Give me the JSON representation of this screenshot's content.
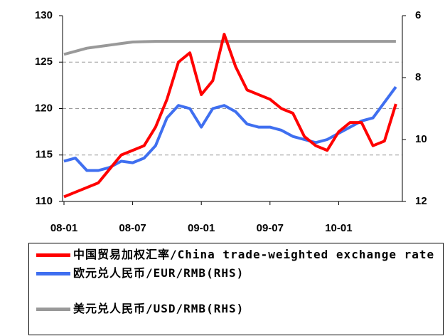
{
  "chart_data": {
    "type": "line",
    "categories": [
      "08-01",
      null,
      null,
      null,
      null,
      null,
      "08-07",
      null,
      null,
      null,
      null,
      null,
      "09-01",
      null,
      null,
      null,
      null,
      null,
      "09-07",
      null,
      null,
      null,
      null,
      null,
      "10-01",
      null,
      null,
      null,
      null,
      null
    ],
    "ylim": [
      110,
      130
    ],
    "yticks": [
      110,
      115,
      120,
      125,
      130
    ],
    "y2lim": [
      12,
      6
    ],
    "y2ticks": [
      6,
      8,
      10,
      12
    ],
    "grid": true,
    "series": [
      {
        "name": "中国贸易加权汇率/China trade-weighted exchange rate",
        "color": "#ff0000",
        "values": [
          110.5,
          111,
          111.5,
          112,
          113.5,
          115,
          115.5,
          116,
          118,
          121,
          125,
          126,
          121.5,
          123,
          128,
          124.5,
          122,
          121.5,
          121,
          120,
          119.5,
          117,
          116,
          115.5,
          117.5,
          118.5,
          118.5,
          116,
          116.5,
          120.5
        ]
      },
      {
        "name": "欧元兑人民币/EUR/RMB(RHS)",
        "color": "#3f6ff0",
        "axis": "y2",
        "values": [
          10.7,
          10.6,
          11.0,
          11.0,
          10.9,
          10.7,
          10.75,
          10.6,
          10.2,
          9.3,
          8.9,
          9.0,
          9.6,
          9.0,
          8.9,
          9.1,
          9.5,
          9.6,
          9.6,
          9.7,
          9.9,
          10.0,
          10.1,
          10.0,
          9.8,
          9.6,
          9.4,
          9.3,
          8.8,
          8.3
        ]
      },
      {
        "name": "美元兑人民币/USD/RMB(RHS)",
        "color": "#999999",
        "axis": "y2",
        "values": [
          7.25,
          7.15,
          7.05,
          7.0,
          6.95,
          6.9,
          6.85,
          6.84,
          6.83,
          6.83,
          6.83,
          6.83,
          6.83,
          6.83,
          6.83,
          6.83,
          6.83,
          6.83,
          6.83,
          6.83,
          6.83,
          6.83,
          6.83,
          6.83,
          6.83,
          6.83,
          6.83,
          6.83,
          6.83,
          6.83
        ]
      }
    ]
  }
}
